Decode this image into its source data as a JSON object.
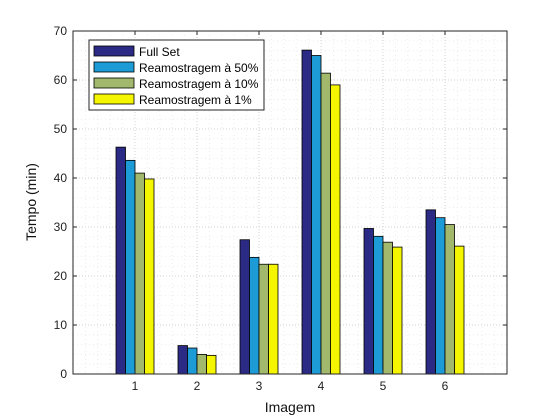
{
  "chart_data": {
    "type": "bar",
    "title": "",
    "xlabel": "Imagem",
    "ylabel": "Tempo (min)",
    "categories": [
      "1",
      "2",
      "3",
      "4",
      "5",
      "6"
    ],
    "ylim": [
      0,
      70
    ],
    "yticks": [
      0,
      10,
      20,
      30,
      40,
      50,
      60,
      70
    ],
    "grid": true,
    "legend_position": "top-left",
    "series": [
      {
        "name": "Full Set",
        "color": "#2b2b85",
        "values": [
          46.3,
          5.8,
          27.4,
          66.1,
          29.7,
          33.5
        ]
      },
      {
        "name": "Reamostragem à 50%",
        "color": "#1d9bd6",
        "values": [
          43.6,
          5.3,
          23.8,
          65.0,
          28.1,
          31.9
        ]
      },
      {
        "name": "Reamostragem à 10%",
        "color": "#a2b86c",
        "values": [
          41.0,
          4.0,
          22.4,
          61.4,
          26.9,
          30.5
        ]
      },
      {
        "name": "Reamostragem à 1%",
        "color": "#f5f500",
        "values": [
          39.8,
          3.8,
          22.4,
          59.0,
          25.9,
          26.1
        ]
      }
    ]
  }
}
